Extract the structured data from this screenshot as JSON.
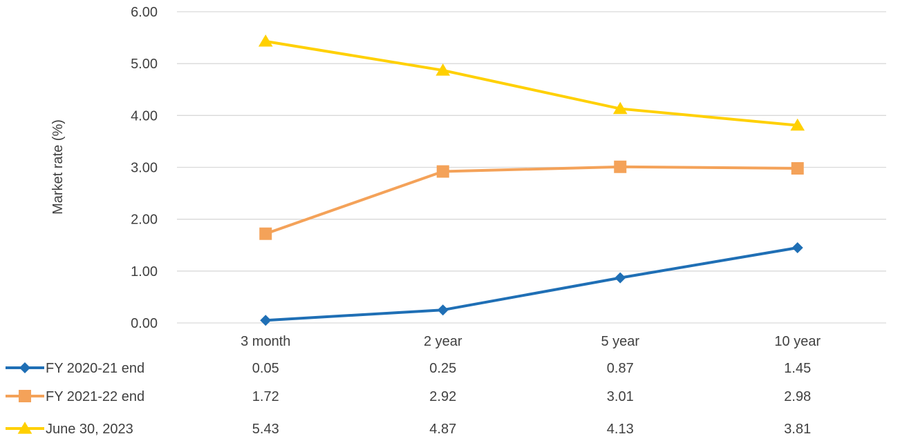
{
  "chart_data": {
    "type": "line",
    "title": "",
    "xlabel": "",
    "ylabel": "Market rate (%)",
    "ylim": [
      0,
      6
    ],
    "y_ticks": [
      "0.00",
      "1.00",
      "2.00",
      "3.00",
      "4.00",
      "5.00",
      "6.00"
    ],
    "categories": [
      "3 month",
      "2 year",
      "5 year",
      "10 year"
    ],
    "grid": true,
    "legend": "data-table-left",
    "series": [
      {
        "name": "FY 2020-21 end",
        "values": [
          0.05,
          0.25,
          0.87,
          1.45
        ],
        "labels": [
          "0.05",
          "0.25",
          "0.87",
          "1.45"
        ],
        "color": "#1F6FB5",
        "marker": "diamond"
      },
      {
        "name": "FY 2021-22 end",
        "values": [
          1.72,
          2.92,
          3.01,
          2.98
        ],
        "labels": [
          "1.72",
          "2.92",
          "3.01",
          "2.98"
        ],
        "color": "#F4A259",
        "marker": "square"
      },
      {
        "name": "June 30, 2023",
        "values": [
          5.43,
          4.87,
          4.13,
          3.81
        ],
        "labels": [
          "5.43",
          "4.87",
          "4.13",
          "3.81"
        ],
        "color": "#FFD000",
        "marker": "triangle"
      }
    ]
  }
}
